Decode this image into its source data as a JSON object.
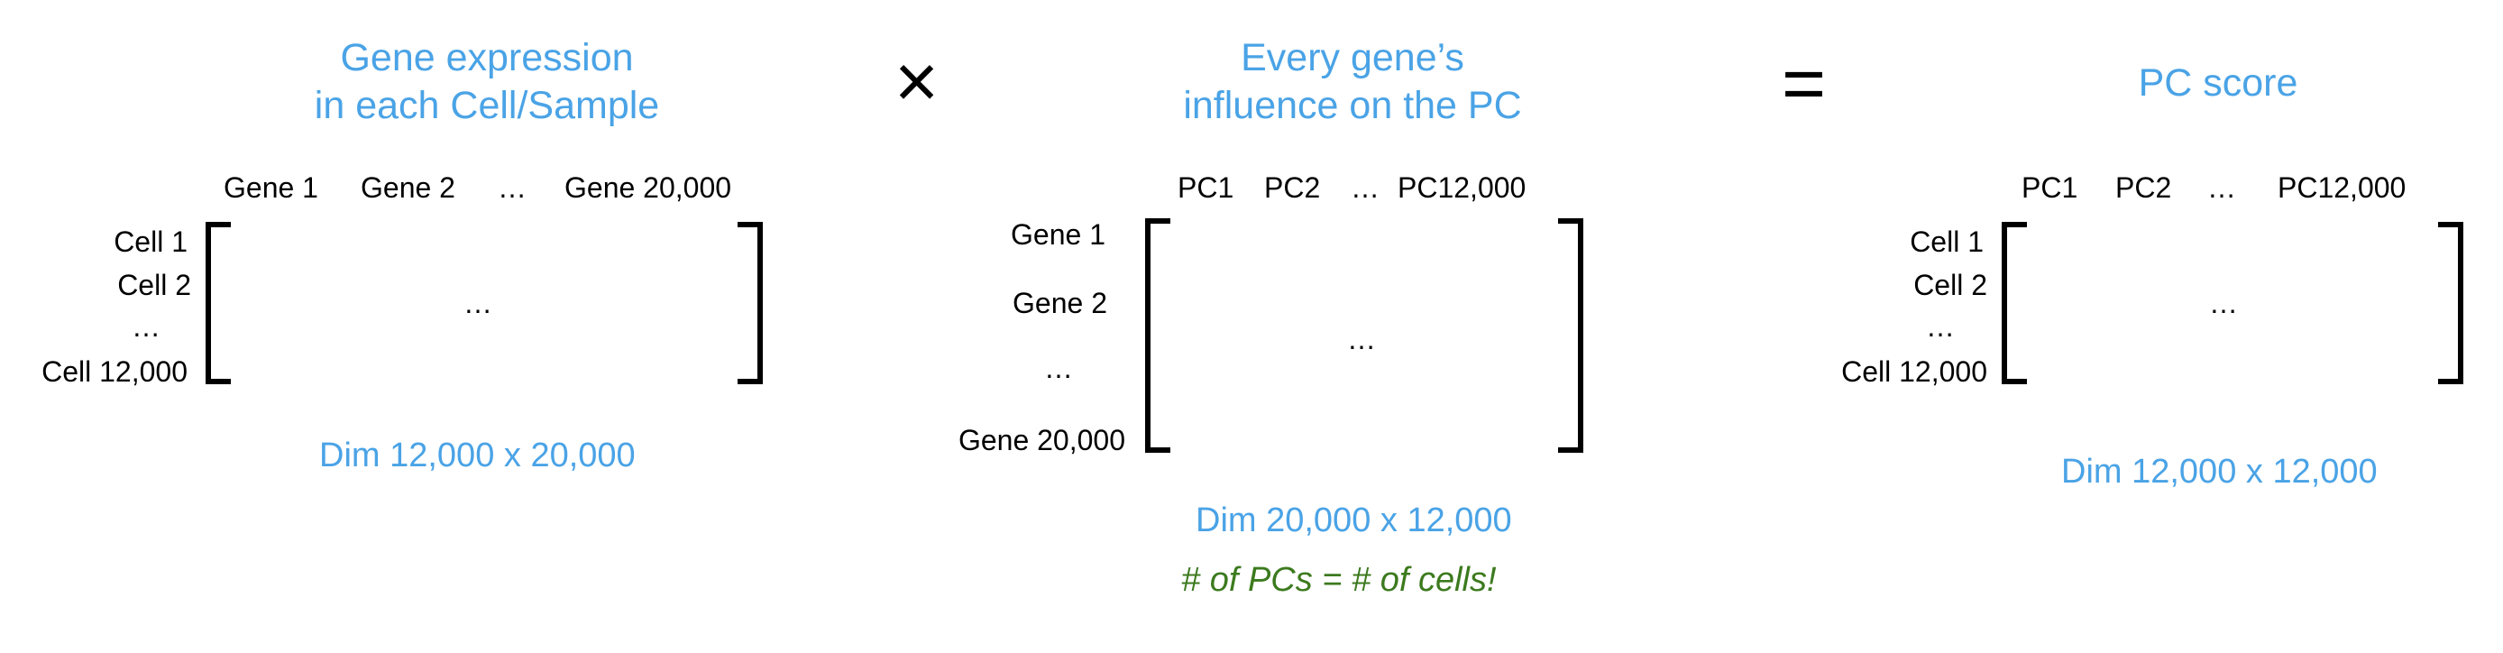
{
  "matrix_a": {
    "title_line1": "Gene expression",
    "title_line2": "in each Cell/Sample",
    "col_headers": [
      "Gene 1",
      "Gene 2",
      "…",
      "Gene 20,000"
    ],
    "row_headers": [
      "Cell 1",
      "Cell 2",
      "…",
      "Cell 12,000"
    ],
    "content": "…",
    "dim": "Dim 12,000 x 20,000"
  },
  "operator_multiply": "×",
  "matrix_b": {
    "title_line1": "Every gene’s",
    "title_line2": "influence on the PC",
    "col_headers": [
      "PC1",
      "PC2",
      "…",
      "PC12,000"
    ],
    "row_headers": [
      "Gene 1",
      "Gene 2",
      "…",
      "Gene 20,000"
    ],
    "content": "…",
    "dim": "Dim 20,000 x 12,000",
    "note": "# of PCs = # of cells!"
  },
  "operator_equals": "=",
  "matrix_c": {
    "title": "PC score",
    "col_headers": [
      "PC1",
      "PC2",
      "…",
      "PC12,000"
    ],
    "row_headers": [
      "Cell 1",
      "Cell 2",
      "…",
      "Cell 12,000"
    ],
    "content": "…",
    "dim": "Dim 12,000 x 12,000"
  },
  "colors": {
    "title": "#4aa3e6",
    "note": "#3c7a1e",
    "text": "#000000"
  }
}
